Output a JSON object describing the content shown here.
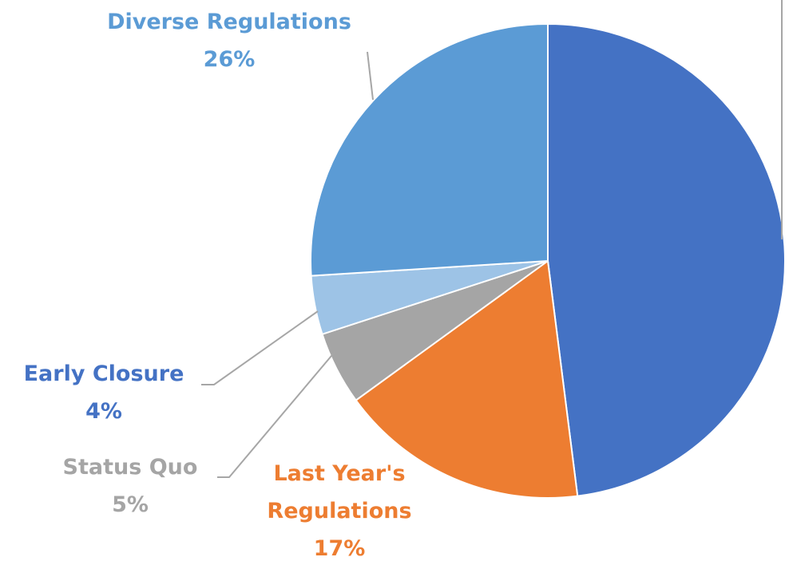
{
  "chart_data": {
    "type": "pie",
    "categories": [
      null,
      "Last Year's Regulations",
      "Status Quo",
      "Early Closure",
      "Diverse Regulations"
    ],
    "values": [
      48,
      17,
      5,
      4,
      26
    ],
    "value_labels": [
      null,
      "17%",
      "5%",
      "4%",
      "26%"
    ],
    "colors": [
      "#4472c4",
      "#ed7d31",
      "#a5a5a5",
      "#9dc3e6",
      "#5b9bd5"
    ],
    "label_colors": [
      "#4472c4",
      "#ed7d31",
      "#a5a5a5",
      "#4472c4",
      "#5b9bd5"
    ]
  }
}
